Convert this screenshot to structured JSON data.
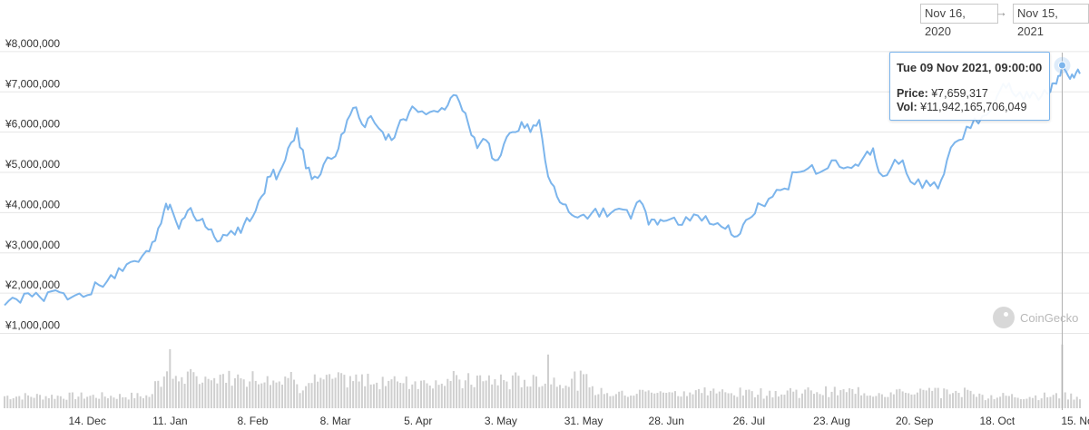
{
  "range": {
    "from": "Nov 16, 2020",
    "arrow": "→",
    "to": "Nov 15, 2021"
  },
  "tooltip": {
    "title": "Tue 09 Nov 2021, 09:00:00",
    "price_label": "Price:",
    "price_value": "¥7,659,317",
    "vol_label": "Vol:",
    "vol_value": "¥11,942,165,706,049"
  },
  "watermark": {
    "text": "CoinGecko",
    "icon": "coingecko-logo-icon"
  },
  "colors": {
    "line": "#7cb5ec",
    "volume": "#cfcfcf",
    "grid": "#e6e6e6",
    "crosshair": "#b0b0b0"
  },
  "chart_data": {
    "type": "line",
    "y_tick_labels": [
      "¥1,000,000",
      "¥2,000,000",
      "¥3,000,000",
      "¥4,000,000",
      "¥5,000,000",
      "¥6,000,000",
      "¥7,000,000",
      "¥8,000,000"
    ],
    "y_ticks": [
      1000000,
      2000000,
      3000000,
      4000000,
      5000000,
      6000000,
      7000000,
      8000000
    ],
    "x_tick_labels": [
      "14. Dec",
      "11. Jan",
      "8. Feb",
      "8. Mar",
      "5. Apr",
      "3. May",
      "31. May",
      "28. Jun",
      "26. Jul",
      "23. Aug",
      "20. Sep",
      "18. Oct",
      "15. Nov"
    ],
    "x_range": [
      "2020-11-16",
      "2021-11-15"
    ],
    "x_tick_days_from_start": [
      28,
      56,
      84,
      112,
      140,
      168,
      196,
      224,
      252,
      280,
      308,
      336,
      364
    ],
    "grid": true,
    "series": [
      {
        "values": [
          {
            "x": "2020-11-16",
            "y": 1700000
          },
          {
            "x": "2020-11-20",
            "y": 1850000
          },
          {
            "x": "2020-11-24",
            "y": 2000000
          },
          {
            "x": "2020-11-28",
            "y": 1900000
          },
          {
            "x": "2020-12-02",
            "y": 2050000
          },
          {
            "x": "2020-12-06",
            "y": 2000000
          },
          {
            "x": "2020-12-10",
            "y": 1950000
          },
          {
            "x": "2020-12-14",
            "y": 1950000
          },
          {
            "x": "2020-12-18",
            "y": 2200000
          },
          {
            "x": "2020-12-22",
            "y": 2450000
          },
          {
            "x": "2020-12-26",
            "y": 2550000
          },
          {
            "x": "2020-12-30",
            "y": 2800000
          },
          {
            "x": "2021-01-03",
            "y": 3050000
          },
          {
            "x": "2021-01-06",
            "y": 3300000
          },
          {
            "x": "2021-01-09",
            "y": 4050000
          },
          {
            "x": "2021-01-11",
            "y": 4200000
          },
          {
            "x": "2021-01-14",
            "y": 3600000
          },
          {
            "x": "2021-01-17",
            "y": 4050000
          },
          {
            "x": "2021-01-20",
            "y": 3800000
          },
          {
            "x": "2021-01-23",
            "y": 3650000
          },
          {
            "x": "2021-01-26",
            "y": 3400000
          },
          {
            "x": "2021-01-29",
            "y": 3450000
          },
          {
            "x": "2021-02-02",
            "y": 3450000
          },
          {
            "x": "2021-02-05",
            "y": 3700000
          },
          {
            "x": "2021-02-08",
            "y": 3900000
          },
          {
            "x": "2021-02-11",
            "y": 4400000
          },
          {
            "x": "2021-02-14",
            "y": 4900000
          },
          {
            "x": "2021-02-17",
            "y": 5000000
          },
          {
            "x": "2021-02-20",
            "y": 5600000
          },
          {
            "x": "2021-02-23",
            "y": 6100000
          },
          {
            "x": "2021-02-26",
            "y": 5100000
          },
          {
            "x": "2021-03-01",
            "y": 4900000
          },
          {
            "x": "2021-03-04",
            "y": 5200000
          },
          {
            "x": "2021-03-08",
            "y": 5400000
          },
          {
            "x": "2021-03-11",
            "y": 6000000
          },
          {
            "x": "2021-03-14",
            "y": 6600000
          },
          {
            "x": "2021-03-17",
            "y": 6200000
          },
          {
            "x": "2021-03-20",
            "y": 6400000
          },
          {
            "x": "2021-03-24",
            "y": 6000000
          },
          {
            "x": "2021-03-27",
            "y": 5800000
          },
          {
            "x": "2021-03-30",
            "y": 6300000
          },
          {
            "x": "2021-04-02",
            "y": 6500000
          },
          {
            "x": "2021-04-05",
            "y": 6500000
          },
          {
            "x": "2021-04-09",
            "y": 6500000
          },
          {
            "x": "2021-04-13",
            "y": 6600000
          },
          {
            "x": "2021-04-16",
            "y": 6850000
          },
          {
            "x": "2021-04-19",
            "y": 6750000
          },
          {
            "x": "2021-04-22",
            "y": 6200000
          },
          {
            "x": "2021-04-25",
            "y": 5600000
          },
          {
            "x": "2021-04-28",
            "y": 5800000
          },
          {
            "x": "2021-05-01",
            "y": 5300000
          },
          {
            "x": "2021-05-04",
            "y": 5700000
          },
          {
            "x": "2021-05-07",
            "y": 6000000
          },
          {
            "x": "2021-05-10",
            "y": 6250000
          },
          {
            "x": "2021-05-13",
            "y": 6000000
          },
          {
            "x": "2021-05-16",
            "y": 6300000
          },
          {
            "x": "2021-05-19",
            "y": 4900000
          },
          {
            "x": "2021-05-22",
            "y": 4400000
          },
          {
            "x": "2021-05-25",
            "y": 4200000
          },
          {
            "x": "2021-05-28",
            "y": 3900000
          },
          {
            "x": "2021-05-31",
            "y": 3950000
          },
          {
            "x": "2021-06-04",
            "y": 4100000
          },
          {
            "x": "2021-06-08",
            "y": 3900000
          },
          {
            "x": "2021-06-12",
            "y": 4100000
          },
          {
            "x": "2021-06-16",
            "y": 3850000
          },
          {
            "x": "2021-06-19",
            "y": 4300000
          },
          {
            "x": "2021-06-22",
            "y": 3700000
          },
          {
            "x": "2021-06-25",
            "y": 3700000
          },
          {
            "x": "2021-06-28",
            "y": 3800000
          },
          {
            "x": "2021-07-02",
            "y": 3700000
          },
          {
            "x": "2021-07-06",
            "y": 3800000
          },
          {
            "x": "2021-07-10",
            "y": 3800000
          },
          {
            "x": "2021-07-14",
            "y": 3700000
          },
          {
            "x": "2021-07-18",
            "y": 3600000
          },
          {
            "x": "2021-07-21",
            "y": 3400000
          },
          {
            "x": "2021-07-24",
            "y": 3700000
          },
          {
            "x": "2021-07-27",
            "y": 3900000
          },
          {
            "x": "2021-07-30",
            "y": 4200000
          },
          {
            "x": "2021-08-03",
            "y": 4400000
          },
          {
            "x": "2021-08-07",
            "y": 4600000
          },
          {
            "x": "2021-08-11",
            "y": 5000000
          },
          {
            "x": "2021-08-15",
            "y": 5100000
          },
          {
            "x": "2021-08-19",
            "y": 5000000
          },
          {
            "x": "2021-08-23",
            "y": 5300000
          },
          {
            "x": "2021-08-27",
            "y": 5100000
          },
          {
            "x": "2021-08-31",
            "y": 5200000
          },
          {
            "x": "2021-09-03",
            "y": 5400000
          },
          {
            "x": "2021-09-06",
            "y": 5600000
          },
          {
            "x": "2021-09-08",
            "y": 5000000
          },
          {
            "x": "2021-09-12",
            "y": 5100000
          },
          {
            "x": "2021-09-16",
            "y": 5300000
          },
          {
            "x": "2021-09-20",
            "y": 4700000
          },
          {
            "x": "2021-09-24",
            "y": 4800000
          },
          {
            "x": "2021-09-28",
            "y": 4600000
          },
          {
            "x": "2021-10-01",
            "y": 5300000
          },
          {
            "x": "2021-10-05",
            "y": 5800000
          },
          {
            "x": "2021-10-09",
            "y": 6100000
          },
          {
            "x": "2021-10-13",
            "y": 6400000
          },
          {
            "x": "2021-10-17",
            "y": 6700000
          },
          {
            "x": "2021-10-20",
            "y": 7200000
          },
          {
            "x": "2021-10-23",
            "y": 7000000
          },
          {
            "x": "2021-10-27",
            "y": 6800000
          },
          {
            "x": "2021-10-30",
            "y": 7000000
          },
          {
            "x": "2021-11-02",
            "y": 6900000
          },
          {
            "x": "2021-11-05",
            "y": 7000000
          },
          {
            "x": "2021-11-07",
            "y": 7200000
          },
          {
            "x": "2021-11-09",
            "y": 7659317
          },
          {
            "x": "2021-11-11",
            "y": 7400000
          },
          {
            "x": "2021-11-13",
            "y": 7350000
          },
          {
            "x": "2021-11-15",
            "y": 7450000
          }
        ]
      }
    ],
    "volume_note": "volume bars along bottom; highlighted at 2021-11-09",
    "volume_max_bars": [
      {
        "x": "2021-01-11",
        "rel": 0.88
      },
      {
        "x": "2021-05-19",
        "rel": 0.8
      },
      {
        "x": "2021-11-09",
        "rel": 0.95
      }
    ]
  }
}
